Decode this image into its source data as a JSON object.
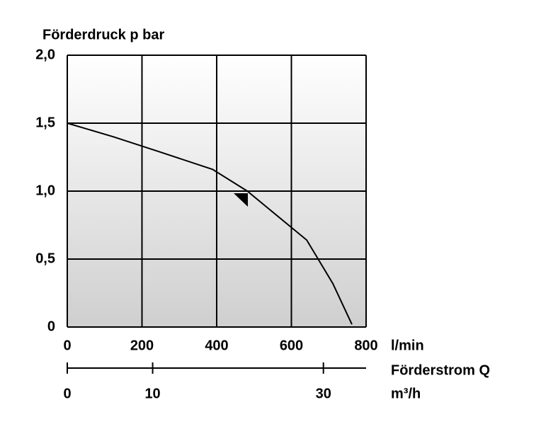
{
  "chart_data": {
    "type": "line",
    "y_label": "Förderdruck p bar",
    "x_label": "l/min",
    "x2_label": "Förderstrom Q",
    "x2_unit": "m³/h",
    "series": [
      {
        "color": "#000000",
        "x": [
          0,
          123,
          246,
          389,
          482,
          641,
          711,
          762
        ],
        "values": [
          1.5,
          1.4,
          1.29,
          1.16,
          1.0,
          0.64,
          0.32,
          0.02
        ]
      }
    ],
    "xlim": [
      0,
      800
    ],
    "xticks": [
      0,
      200,
      400,
      600,
      800
    ],
    "ylim": [
      0,
      2
    ],
    "yticks": [
      0,
      {
        "value": 0.5,
        "label": "0,5"
      },
      {
        "value": 1,
        "label": "1,0"
      },
      {
        "value": 1.5,
        "label": "1,5"
      },
      {
        "value": 2,
        "label": "2,0"
      }
    ],
    "x2lim": [
      0,
      35
    ],
    "x2ticks": [
      0,
      10,
      30
    ],
    "grid": true
  }
}
